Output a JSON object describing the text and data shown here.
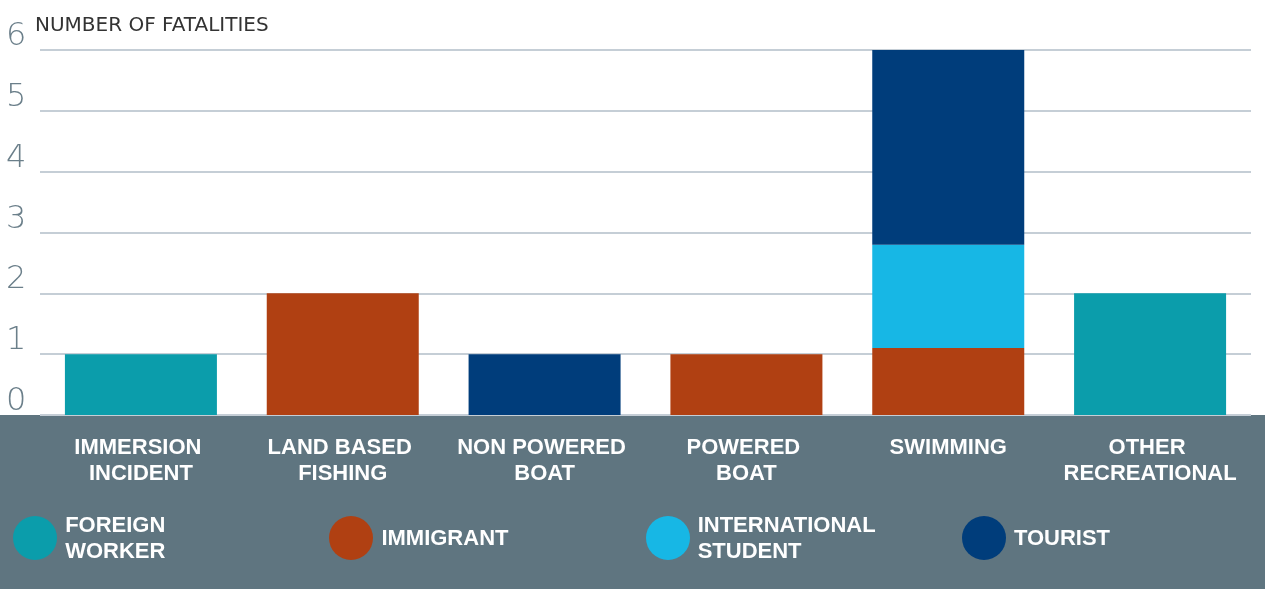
{
  "chart_data": {
    "type": "bar",
    "stacked": true,
    "ylabel": "NUMBER OF FATALITIES",
    "categories": [
      "IMMERSION INCIDENT",
      "LAND BASED FISHING",
      "NON POWERED BOAT",
      "POWERED BOAT",
      "SWIMMING",
      "OTHER RECREATIONAL"
    ],
    "series": [
      {
        "name": "FOREIGN WORKER",
        "color": "#0b9dab",
        "values": [
          1,
          null,
          null,
          null,
          null,
          2
        ]
      },
      {
        "name": "IMMIGRANT",
        "color": "#b04012",
        "values": [
          null,
          2,
          null,
          1,
          1.1,
          null
        ]
      },
      {
        "name": "INTERNATIONAL STUDENT",
        "color": "#17b7e5",
        "values": [
          null,
          null,
          null,
          null,
          1.7,
          null
        ]
      },
      {
        "name": "TOURIST",
        "color": "#003d7b",
        "values": [
          null,
          null,
          1,
          null,
          3.2,
          null
        ]
      }
    ],
    "ylim": [
      0,
      6
    ],
    "yticks": [
      0,
      1,
      2,
      3,
      4,
      5,
      6
    ],
    "grid": "y",
    "legend": "bottom"
  }
}
